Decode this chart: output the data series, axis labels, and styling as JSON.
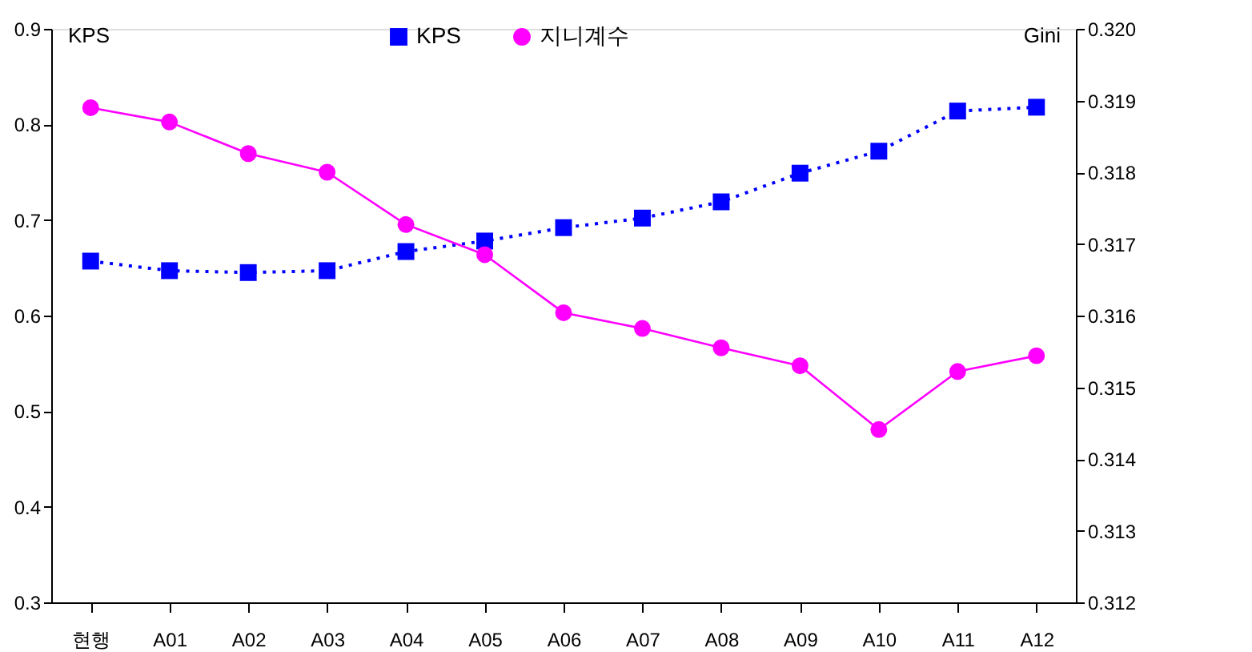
{
  "chart_data": {
    "type": "line",
    "categories": [
      "현행",
      "A01",
      "A02",
      "A03",
      "A04",
      "A05",
      "A06",
      "A07",
      "A08",
      "A09",
      "A10",
      "A11",
      "A12"
    ],
    "ylabel": "KPS",
    "y2label": "Gini",
    "ylim": [
      0.3,
      0.9
    ],
    "yticks": [
      0.3,
      0.4,
      0.5,
      0.6,
      0.7,
      0.8,
      0.9
    ],
    "y2lim": [
      0.312,
      0.32
    ],
    "y2ticks": [
      {
        "value": 0.312,
        "label": "0.312"
      },
      {
        "value": 0.313,
        "label": "0.313"
      },
      {
        "value": 0.314,
        "label": "0.314"
      },
      {
        "value": 0.315,
        "label": "0.315"
      },
      {
        "value": 0.316,
        "label": "0.316"
      },
      {
        "value": 0.317,
        "label": "0.317"
      },
      {
        "value": 0.318,
        "label": "0.318"
      },
      {
        "value": 0.319,
        "label": "0.319"
      },
      {
        "value": 0.32,
        "label": "0.320"
      }
    ],
    "grid": false,
    "legend": "top",
    "series": [
      {
        "name": "KPS",
        "color": "#0000ff",
        "marker": "square",
        "line_style": "dotted",
        "values": [
          0.657,
          0.647,
          0.645,
          0.647,
          0.667,
          0.678,
          0.692,
          0.702,
          0.719,
          0.749,
          0.772,
          0.814,
          0.818
        ]
      },
      {
        "name": "지니계수",
        "color": "#ff00ff",
        "marker": "circle",
        "line_style": "solid",
        "axis": "y2",
        "values": [
          0.3189,
          0.3187,
          0.31826,
          0.318,
          0.31727,
          0.31685,
          0.31604,
          0.31582,
          0.31555,
          0.3153,
          0.31441,
          0.31522,
          0.31544
        ]
      }
    ]
  }
}
